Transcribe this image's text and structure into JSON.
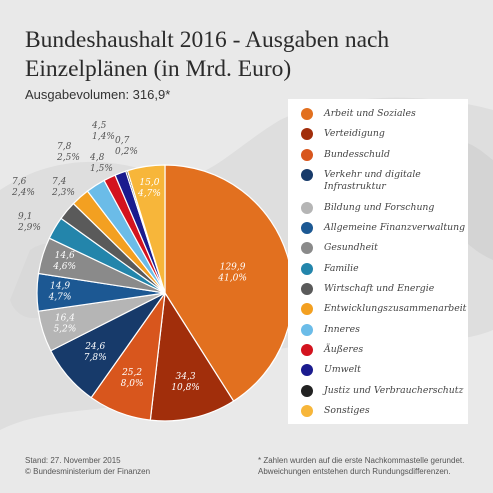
{
  "title": "Bundeshaushalt 2016 - Ausgaben nach Einzelplänen (in Mrd. Euro)",
  "subtitle": "Ausgabevolumen: 316,9*",
  "footer": {
    "left_line1": "Stand: 27. November 2015",
    "left_line2": "© Bundesministerium der Finanzen",
    "right_line1": "* Zahlen wurden auf die erste Nachkommastelle gerundet.",
    "right_line2": "Abweichungen entstehen durch Rundungsdifferenzen."
  },
  "chart_data": {
    "type": "pie",
    "title": "Bundeshaushalt 2016 - Ausgaben nach Einzelplänen (in Mrd. Euro)",
    "total": "316,9*",
    "slices": [
      {
        "name": "Arbeit und Soziales",
        "value": 129.9,
        "value_label": "129,9",
        "percent_label": "41,0%",
        "color": "#e2701f"
      },
      {
        "name": "Verteidigung",
        "value": 34.3,
        "value_label": "34,3",
        "percent_label": "10,8%",
        "color": "#a12e0b"
      },
      {
        "name": "Bundesschuld",
        "value": 25.2,
        "value_label": "25,2",
        "percent_label": "8,0%",
        "color": "#d8561d"
      },
      {
        "name": "Verkehr und digitale Infrastruktur",
        "value": 24.6,
        "value_label": "24,6",
        "percent_label": "7,8%",
        "color": "#173a6a"
      },
      {
        "name": "Bildung und Forschung",
        "value": 16.4,
        "value_label": "16,4",
        "percent_label": "5,2%",
        "color": "#b5b5b5"
      },
      {
        "name": "Allgemeine Finanzverwaltung",
        "value": 14.9,
        "value_label": "14,9",
        "percent_label": "4,7%",
        "color": "#1c5893"
      },
      {
        "name": "Gesundheit",
        "value": 14.6,
        "value_label": "14,6",
        "percent_label": "4,6%",
        "color": "#8a8a8a"
      },
      {
        "name": "Familie",
        "value": 9.1,
        "value_label": "9,1",
        "percent_label": "2,9%",
        "color": "#2385ab"
      },
      {
        "name": "Wirtschaft und Energie",
        "value": 7.6,
        "value_label": "7,6",
        "percent_label": "2,4%",
        "color": "#5a5a5a"
      },
      {
        "name": "Entwicklungszusammenarbeit",
        "value": 7.4,
        "value_label": "7,4",
        "percent_label": "2,3%",
        "color": "#f3a021"
      },
      {
        "name": "Inneres",
        "value": 7.8,
        "value_label": "7,8",
        "percent_label": "2,5%",
        "color": "#6bbce8"
      },
      {
        "name": "Äußeres",
        "value": 4.8,
        "value_label": "4,8",
        "percent_label": "1,5%",
        "color": "#d3131e"
      },
      {
        "name": "Umwelt",
        "value": 4.5,
        "value_label": "4,5",
        "percent_label": "1,4%",
        "color": "#1b1b8e"
      },
      {
        "name": "Justiz und Verbraucherschutz",
        "value": 0.7,
        "value_label": "0,7",
        "percent_label": "0,2%",
        "color": "#222222"
      },
      {
        "name": "Sonstiges",
        "value": 15.0,
        "value_label": "15,0",
        "percent_label": "4,7%",
        "color": "#f7b63a"
      }
    ],
    "legend_placement": "right"
  }
}
